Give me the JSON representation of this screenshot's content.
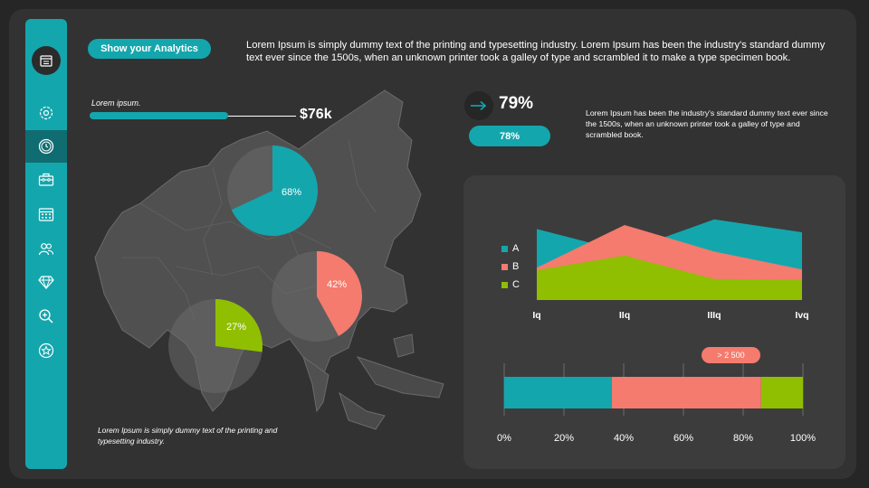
{
  "header": {
    "pill_title": "Show your Analytics",
    "intro": "Lorem Ipsum is simply dummy text of the printing and typesetting industry. Lorem Ipsum has been the industry's standard dummy text ever since the 1500s, when an unknown printer took a galley of type and scrambled it to make a type specimen book."
  },
  "sidebar": {
    "items": [
      {
        "name": "calendar-icon"
      },
      {
        "name": "gear-icon"
      },
      {
        "name": "clock-icon",
        "active": true
      },
      {
        "name": "toolbox-icon"
      },
      {
        "name": "calendar-grid-icon"
      },
      {
        "name": "users-icon"
      },
      {
        "name": "diamond-icon"
      },
      {
        "name": "zoom-in-icon"
      },
      {
        "name": "star-icon"
      }
    ]
  },
  "metric": {
    "label": "Lorem ipsum.",
    "value": "$76k",
    "progress": 0.73
  },
  "pies": [
    {
      "label": "68%",
      "value": 68,
      "color": "#14a6ad"
    },
    {
      "label": "42%",
      "value": 42,
      "color": "#f47b6e"
    },
    {
      "label": "27%",
      "value": 27,
      "color": "#8fbf00"
    }
  ],
  "bottom_note": "Lorem Ipsum is simply dummy text of the printing and typesetting industry.",
  "kpi": {
    "value": "79%",
    "pill": "78%",
    "description": "Lorem Ipsum has been the industry's standard dummy text ever since the 1500s, when an unknown printer took a galley of type and scrambled book."
  },
  "colors": {
    "teal": "#14a6ad",
    "coral": "#f47b6e",
    "green": "#8fbf00"
  },
  "chart_data": [
    {
      "type": "area",
      "categories": [
        "Iq",
        "IIq",
        "IIIq",
        "Ivq"
      ],
      "series": [
        {
          "name": "A",
          "color": "#14a6ad",
          "values": [
            88,
            60,
            100,
            84
          ]
        },
        {
          "name": "B",
          "color": "#f47b6e",
          "values": [
            40,
            93,
            60,
            38
          ]
        },
        {
          "name": "C",
          "color": "#8fbf00",
          "values": [
            37,
            55,
            26,
            25
          ]
        }
      ],
      "ylim": [
        0,
        100
      ]
    },
    {
      "type": "bar",
      "orientation": "horizontal-stacked",
      "segments": [
        {
          "color": "#14a6ad",
          "value": 36
        },
        {
          "color": "#f47b6e",
          "value": 50
        },
        {
          "color": "#8fbf00",
          "value": 14
        }
      ],
      "badge": "> 2 500",
      "ticks": [
        "0%",
        "20%",
        "40%",
        "60%",
        "80%",
        "100%"
      ],
      "xlim": [
        0,
        100
      ]
    }
  ]
}
